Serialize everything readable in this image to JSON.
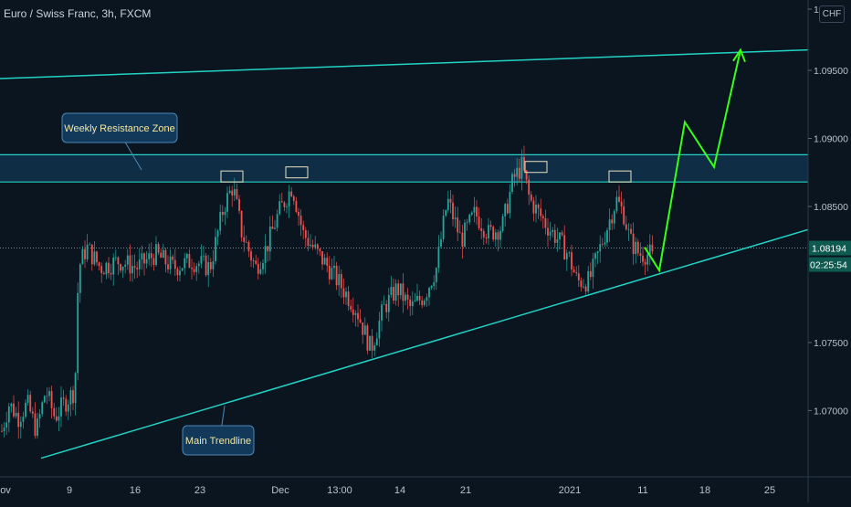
{
  "title": "Euro / Swiss Franc, 3h, FXCM",
  "currency_label": "CHF",
  "colors": {
    "background": "#0b1520",
    "up": "#26a69a",
    "down": "#ef5350",
    "drawing": "#22d3c5",
    "projection": "#39ff14",
    "zone_fill": "#11304a",
    "callout_fill": "#12395a",
    "callout_text": "#f2e7a6"
  },
  "chart_data": {
    "type": "candlestick",
    "ylim": [
      1.066,
      1.0995
    ],
    "y_ticks": [
      {
        "value": 1.07,
        "label": "1.07000"
      },
      {
        "value": 1.075,
        "label": "1.07500"
      },
      {
        "value": 1.085,
        "label": "1.08500"
      },
      {
        "value": 1.09,
        "label": "1.09000"
      },
      {
        "value": 1.095,
        "label": "1.09500"
      },
      {
        "value": 1.0995,
        "label": "1"
      }
    ],
    "x_ticks": [
      "ov",
      "9",
      "16",
      "23",
      "Dec",
      "13:00",
      "14",
      "21",
      "2021",
      "11",
      "18",
      "25"
    ],
    "price_label": "1.08194",
    "countdown_label": "02:25:54",
    "price_path": [
      [
        0,
        1.068
      ],
      [
        10,
        1.0705
      ],
      [
        20,
        1.0695
      ],
      [
        30,
        1.0705
      ],
      [
        40,
        1.0685
      ],
      [
        50,
        1.0715
      ],
      [
        60,
        1.0695
      ],
      [
        70,
        1.0705
      ],
      [
        82,
        1.0715
      ],
      [
        86,
        1.0805
      ],
      [
        95,
        1.082
      ],
      [
        110,
        1.0805
      ],
      [
        130,
        1.081
      ],
      [
        150,
        1.0805
      ],
      [
        170,
        1.0815
      ],
      [
        190,
        1.0805
      ],
      [
        210,
        1.081
      ],
      [
        230,
        1.0805
      ],
      [
        245,
        1.085
      ],
      [
        255,
        1.0865
      ],
      [
        265,
        1.083
      ],
      [
        280,
        1.0805
      ],
      [
        292,
        1.082
      ],
      [
        305,
        1.0845
      ],
      [
        320,
        1.0865
      ],
      [
        332,
        1.083
      ],
      [
        348,
        1.0815
      ],
      [
        360,
        1.0805
      ],
      [
        375,
        1.079
      ],
      [
        390,
        1.0775
      ],
      [
        406,
        1.0745
      ],
      [
        420,
        1.0775
      ],
      [
        435,
        1.079
      ],
      [
        450,
        1.0775
      ],
      [
        465,
        1.0785
      ],
      [
        478,
        1.0805
      ],
      [
        490,
        1.0855
      ],
      [
        505,
        1.0825
      ],
      [
        520,
        1.0845
      ],
      [
        535,
        1.083
      ],
      [
        550,
        1.0835
      ],
      [
        562,
        1.087
      ],
      [
        572,
        1.088
      ],
      [
        580,
        1.0855
      ],
      [
        590,
        1.0845
      ],
      [
        600,
        1.0835
      ],
      [
        612,
        1.0825
      ],
      [
        622,
        1.0815
      ],
      [
        632,
        1.0795
      ],
      [
        645,
        1.0795
      ],
      [
        655,
        1.0815
      ],
      [
        665,
        1.0835
      ],
      [
        675,
        1.0855
      ],
      [
        683,
        1.0845
      ],
      [
        690,
        1.0825
      ],
      [
        700,
        1.0815
      ],
      [
        712,
        1.0815
      ],
      [
        720,
        1.0805
      ]
    ],
    "resistance_zone": {
      "top": 1.0888,
      "bottom": 1.0868,
      "label": "Weekly Resistance Zone"
    },
    "upper_channel_line": {
      "y_start": 1.0944,
      "y_end": 1.0965
    },
    "main_trendline": {
      "points": [
        [
          45,
          1.0665
        ],
        [
          885,
          1.0833
        ]
      ],
      "label": "Main Trendline"
    },
    "highlight_boxes": [
      {
        "x": 254,
        "y": 1.0868
      },
      {
        "x": 325,
        "y": 1.0871
      },
      {
        "x": 587,
        "y": 1.0875
      },
      {
        "x": 679,
        "y": 1.0868
      }
    ],
    "projection_path": [
      [
        706,
        1.082
      ],
      [
        722,
        1.0803
      ],
      [
        750,
        1.0912
      ],
      [
        782,
        1.0879
      ],
      [
        811,
        1.0965
      ]
    ]
  }
}
